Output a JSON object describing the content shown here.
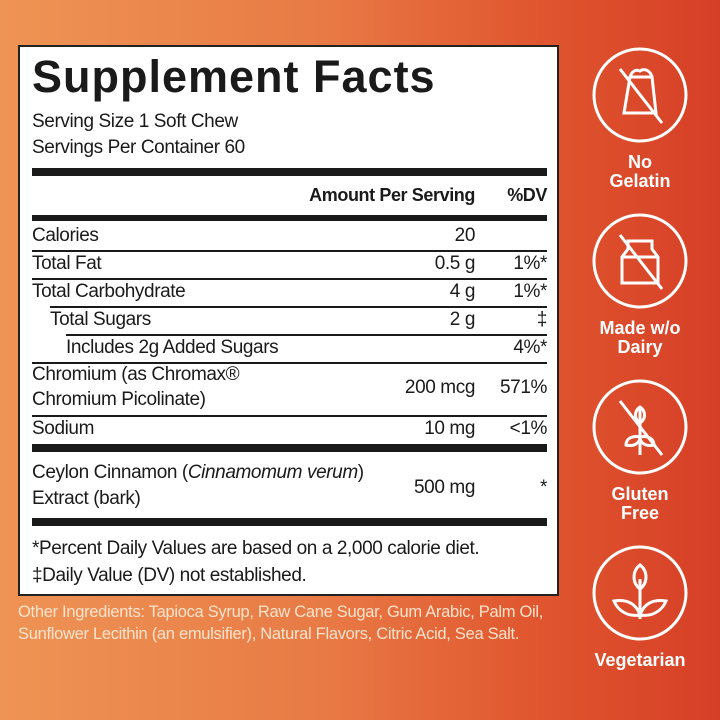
{
  "label": {
    "title": "Supplement Facts",
    "serving_size": "Serving Size 1 Soft Chew",
    "servings_per_container": "Servings Per Container 60",
    "col_amount": "Amount Per Serving",
    "col_dv": "%DV",
    "rows": [
      {
        "name": "Calories",
        "amount": "20",
        "dv": ""
      },
      {
        "name": "Total Fat",
        "amount": "0.5 g",
        "dv": "1%*"
      },
      {
        "name": "Total Carbohydrate",
        "amount": "4 g",
        "dv": "1%*"
      },
      {
        "name": "Total Sugars",
        "amount": "2 g",
        "dv": "‡"
      },
      {
        "name": "Includes 2g Added Sugars",
        "amount": "",
        "dv": "4%*"
      },
      {
        "name_line1": "Chromium (as Chromax®",
        "name_line2": "Chromium Picolinate)",
        "amount": "200 mcg",
        "dv": "571%"
      },
      {
        "name": "Sodium",
        "amount": "10 mg",
        "dv": "<1%"
      },
      {
        "name_prefix": "Ceylon Cinnamon (",
        "name_italic": "Cinnamomum verum",
        "name_suffix": ")",
        "name_line2": "Extract (bark)",
        "amount": "500 mg",
        "dv": "*"
      }
    ],
    "footnote1": "*Percent Daily Values are based on a 2,000 calorie diet.",
    "footnote2": "‡Daily Value (DV) not established."
  },
  "other_ingredients": "Other Ingredients: Tapioca Syrup, Raw Cane Sugar, Gum Arabic, Palm Oil, Sunflower Lecithin (an emulsifier), Natural Flavors, Citric Acid, Sea Salt.",
  "badges": [
    {
      "icon": "no-gelatin-icon",
      "line1": "No",
      "line2": "Gelatin"
    },
    {
      "icon": "no-dairy-icon",
      "line1": "Made w/o",
      "line2": "Dairy"
    },
    {
      "icon": "gluten-free-icon",
      "line1": "Gluten",
      "line2": "Free"
    },
    {
      "icon": "vegetarian-icon",
      "line1": "Vegetarian",
      "line2": ""
    }
  ],
  "colors": {
    "background_start": "#ee9455",
    "background_end": "#d63f27",
    "text": "#1a1a1a",
    "ingredients_text": "#fde3cc"
  }
}
